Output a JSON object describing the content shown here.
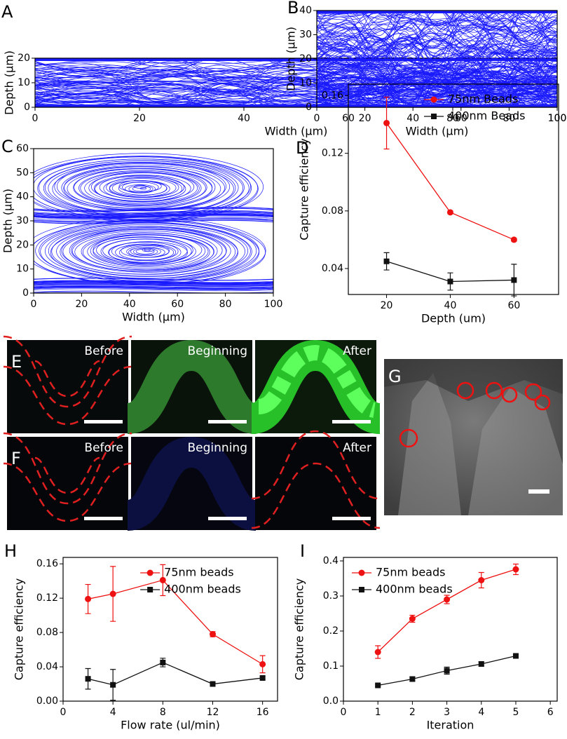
{
  "chart_data": [
    {
      "type": "streamline",
      "panel": "A",
      "xlabel": "Width (µm)",
      "ylabel": "Depth (µm)",
      "color": "#1a1aff",
      "xlim": [
        0,
        100
      ],
      "ylim": [
        0,
        20
      ],
      "xticks": [
        0,
        20,
        40,
        60,
        80,
        100
      ],
      "yticks": [
        0,
        10,
        20
      ]
    },
    {
      "type": "streamline",
      "panel": "B",
      "xlabel": "Width (µm)",
      "ylabel": "Depth (µm)",
      "color": "#1a1aff",
      "xlim": [
        0,
        100
      ],
      "ylim": [
        0,
        40
      ],
      "xticks": [
        0,
        20,
        40,
        60,
        80,
        100
      ],
      "yticks": [
        0,
        10,
        20,
        30,
        40
      ]
    },
    {
      "type": "streamline",
      "panel": "C",
      "xlabel": "Width (µm)",
      "ylabel": "Depth (µm)",
      "color": "#1a1aff",
      "xlim": [
        0,
        100
      ],
      "ylim": [
        0,
        60
      ],
      "xticks": [
        0,
        20,
        40,
        60,
        80,
        100
      ],
      "yticks": [
        0,
        10,
        20,
        30,
        40,
        50,
        60
      ]
    },
    {
      "type": "line",
      "panel": "D",
      "xlabel": "Depth (um)",
      "ylabel": "Capture efficiency",
      "legend": "upper right",
      "x": [
        20,
        40,
        60
      ],
      "xlim": [
        8,
        74
      ],
      "ylim": [
        0.022,
        0.168
      ],
      "xticks": [
        20,
        40,
        60
      ],
      "yticks": [
        0.04,
        0.08,
        0.12,
        0.16
      ],
      "series": [
        {
          "name": "75nm Beads",
          "color": "#ee1111",
          "marker": "circle",
          "values": [
            0.141,
            0.079,
            0.06
          ],
          "errors": [
            0.018,
            0.001,
            0.001
          ]
        },
        {
          "name": "400nm Beads",
          "color": "#111111",
          "marker": "square",
          "values": [
            0.045,
            0.031,
            0.032
          ],
          "errors": [
            0.006,
            0.006,
            0.011
          ]
        }
      ]
    },
    {
      "type": "line",
      "panel": "H",
      "xlabel": "Flow rate (ul/min)",
      "ylabel": "Capture efficiency",
      "legend": "upper right",
      "x": [
        2,
        4,
        8,
        12,
        16
      ],
      "xlim": [
        0,
        17.2
      ],
      "ylim": [
        0,
        0.1675
      ],
      "xticks": [
        0,
        4,
        8,
        12,
        16
      ],
      "yticks": [
        {
          "value": 0,
          "label": "0.00"
        },
        0.04,
        0.08,
        0.12,
        0.16
      ],
      "series": [
        {
          "name": "75nm beads",
          "color": "#ee1111",
          "marker": "circle",
          "values": [
            0.119,
            0.125,
            0.141,
            0.078,
            0.043
          ],
          "errors": [
            0.017,
            0.032,
            0.018,
            0.003,
            0.01
          ]
        },
        {
          "name": "400nm beads",
          "color": "#111111",
          "marker": "square",
          "values": [
            0.026,
            0.019,
            0.045,
            0.02,
            0.027
          ],
          "errors": [
            0.012,
            0.018,
            0.005,
            0.002,
            0.002
          ]
        }
      ]
    },
    {
      "type": "line",
      "panel": "I",
      "xlabel": "Iteration",
      "ylabel": "Capture efficiency",
      "legend": "upper left",
      "x": [
        1,
        2,
        3,
        4,
        5
      ],
      "xlim": [
        0,
        6.2
      ],
      "ylim": [
        0,
        0.41
      ],
      "xticks": [
        0,
        1,
        2,
        3,
        4,
        5,
        6
      ],
      "yticks": [
        {
          "value": 0,
          "label": "0.0"
        },
        0.1,
        0.2,
        0.3,
        0.4
      ],
      "series": [
        {
          "name": "75nm beads",
          "color": "#ee1111",
          "marker": "circle",
          "values": [
            0.14,
            0.235,
            0.29,
            0.345,
            0.376
          ],
          "errors": [
            0.018,
            0.01,
            0.012,
            0.022,
            0.015
          ]
        },
        {
          "name": "400nm beads",
          "color": "#111111",
          "marker": "square",
          "values": [
            0.045,
            0.063,
            0.087,
            0.106,
            0.129
          ],
          "errors": [
            0.003,
            0.006,
            0.01,
            0.006,
            0.003
          ]
        }
      ]
    }
  ],
  "images": [
    {
      "panel": "E",
      "labels": [
        "Before",
        "Beginning",
        "After"
      ]
    },
    {
      "panel": "F",
      "labels": [
        "Before",
        "Beginning",
        "After"
      ]
    },
    {
      "panel": "G"
    }
  ]
}
